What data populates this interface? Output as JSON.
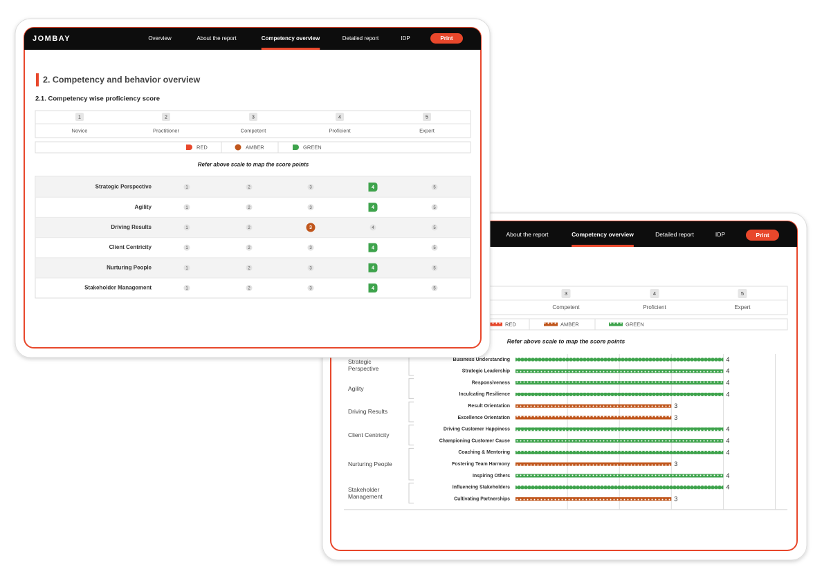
{
  "front": {
    "logo": "JOMBAY",
    "nav": [
      "Overview",
      "About the report",
      "Competency overview",
      "Detailed report",
      "IDP"
    ],
    "active_nav": 2,
    "print": "Print",
    "section_title": "2. Competency and behavior overview",
    "subsection_title": "2.1. Competency wise proficiency score",
    "scale": [
      {
        "value": 1,
        "label": "Novice"
      },
      {
        "value": 2,
        "label": "Practitioner"
      },
      {
        "value": 3,
        "label": "Competent"
      },
      {
        "value": 4,
        "label": "Proficient"
      },
      {
        "value": 5,
        "label": "Expert"
      }
    ],
    "legend": [
      {
        "label": "RED",
        "color": "#e8472b",
        "shape": "flag"
      },
      {
        "label": "AMBER",
        "color": "#c0561c",
        "shape": "circle"
      },
      {
        "label": "GREEN",
        "color": "#3ea34c",
        "shape": "flag"
      }
    ],
    "note": "Refer above scale to map the score points",
    "rows": [
      {
        "name": "Strategic Perspective",
        "score": 4,
        "color": "#3ea34c"
      },
      {
        "name": "Agility",
        "score": 4,
        "color": "#3ea34c"
      },
      {
        "name": "Driving Results",
        "score": 3,
        "color": "#c0561c"
      },
      {
        "name": "Client Centricity",
        "score": 4,
        "color": "#3ea34c"
      },
      {
        "name": "Nurturing People",
        "score": 4,
        "color": "#3ea34c"
      },
      {
        "name": "Stakeholder Management",
        "score": 4,
        "color": "#3ea34c"
      }
    ]
  },
  "back": {
    "nav": [
      "About the report",
      "Competency overview",
      "Detailed report",
      "IDP"
    ],
    "active_nav": 1,
    "print": "Print",
    "scale": [
      {
        "value": 3,
        "label": "Competent"
      },
      {
        "value": 4,
        "label": "Proficient"
      },
      {
        "value": 5,
        "label": "Expert"
      }
    ],
    "legend": [
      {
        "label": "RED",
        "color": "#e8472b"
      },
      {
        "label": "AMBER",
        "color": "#c0561c"
      },
      {
        "label": "GREEN",
        "color": "#3ea34c"
      }
    ],
    "note": "Refer above scale to map the score points",
    "chart_data": {
      "type": "bar",
      "orientation": "horizontal",
      "xlim": [
        0,
        5
      ],
      "xticks": [
        1,
        2,
        3,
        4,
        5
      ],
      "grid": true,
      "groups": [
        {
          "name": "Strategic Perspective",
          "categories": [
            "Business Understanding",
            "Strategic Leadership"
          ],
          "values": [
            4,
            4
          ],
          "colors": [
            "#3ea34c",
            "#3ea34c"
          ]
        },
        {
          "name": "Agility",
          "categories": [
            "Responsiveness",
            "Inculcating Resilience"
          ],
          "values": [
            4,
            4
          ],
          "colors": [
            "#3ea34c",
            "#3ea34c"
          ]
        },
        {
          "name": "Driving Results",
          "categories": [
            "Result Orientation",
            "Excellence Orientation"
          ],
          "values": [
            3,
            3
          ],
          "colors": [
            "#c0561c",
            "#c0561c"
          ]
        },
        {
          "name": "Client Centricity",
          "categories": [
            "Driving Customer Happiness",
            "Championing Customer Cause"
          ],
          "values": [
            4,
            4
          ],
          "colors": [
            "#3ea34c",
            "#3ea34c"
          ]
        },
        {
          "name": "Nurturing People",
          "categories": [
            "Coaching & Mentoring",
            "Fostering Team Harmony",
            "Inspiring Others"
          ],
          "values": [
            4,
            3,
            4
          ],
          "colors": [
            "#3ea34c",
            "#c0561c",
            "#3ea34c"
          ]
        },
        {
          "name": "Stakeholder Management",
          "categories": [
            "Influencing Stakeholders",
            "Cultivating Partnerships"
          ],
          "values": [
            4,
            3
          ],
          "colors": [
            "#3ea34c",
            "#c0561c"
          ]
        }
      ]
    }
  }
}
